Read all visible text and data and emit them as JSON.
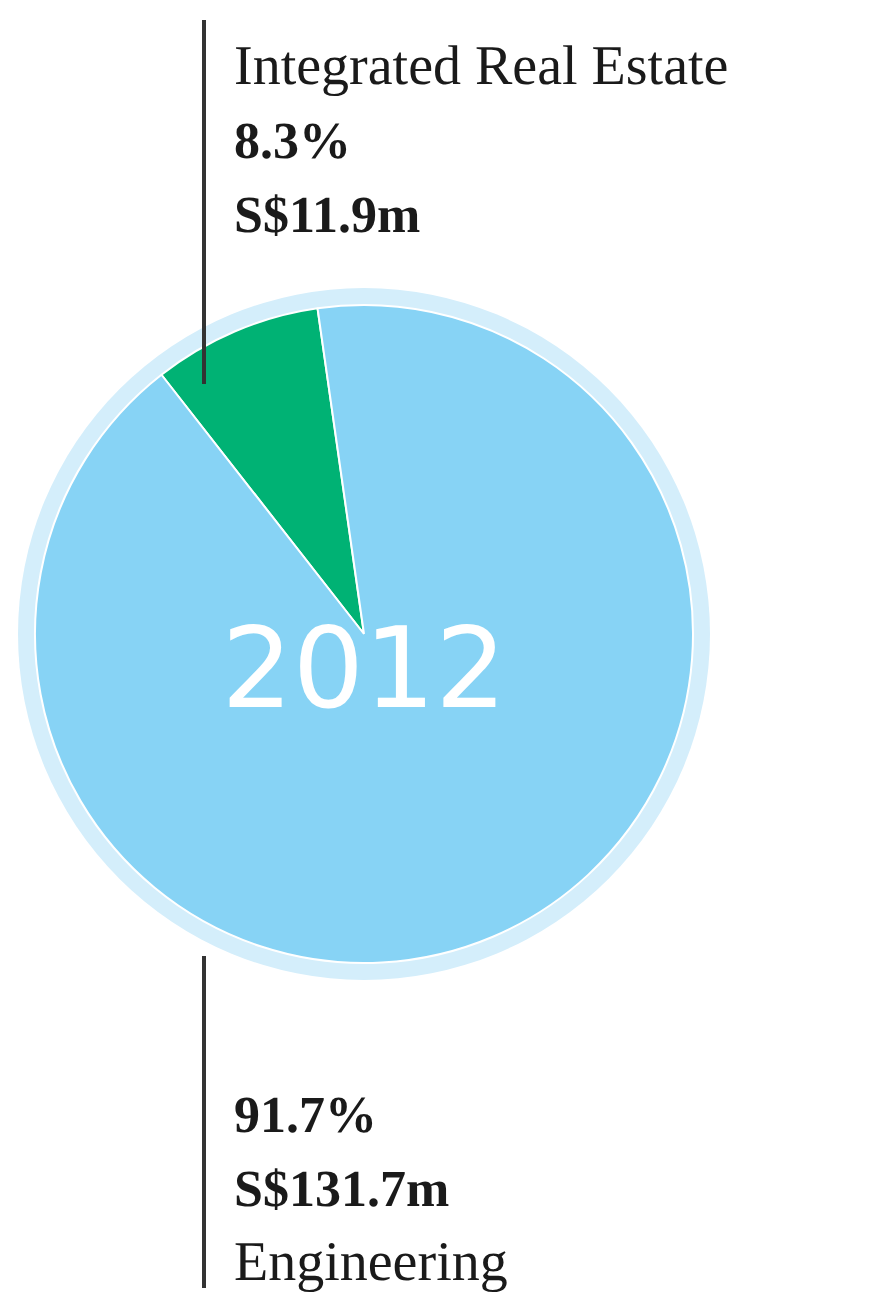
{
  "chart_data": {
    "type": "pie",
    "title": "2012",
    "categories": [
      "Integrated Real Estate",
      "Engineering"
    ],
    "values": [
      8.3,
      91.7
    ],
    "colors": [
      "#00b274",
      "#87d3f5"
    ],
    "value_labels": [
      "8.3%",
      "91.7%"
    ],
    "annotations": [
      "S$11.9m",
      "S$131.7m"
    ],
    "legend": false
  }
}
